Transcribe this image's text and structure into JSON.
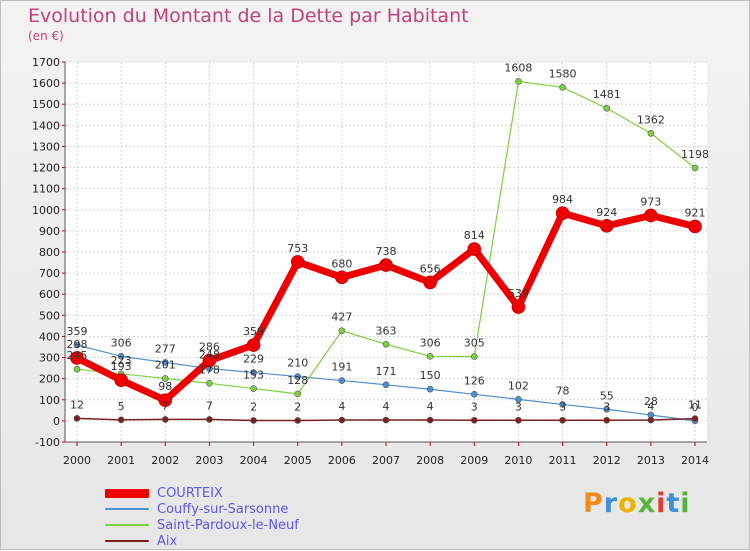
{
  "title": "Evolution du Montant de la Dette par Habitant",
  "subtitle": "(en €)",
  "logo": "Proxiti",
  "chart_data": {
    "type": "line",
    "x": [
      "2000",
      "2001",
      "2002",
      "2003",
      "2004",
      "2005",
      "2006",
      "2007",
      "2008",
      "2009",
      "2010",
      "2011",
      "2012",
      "2013",
      "2014"
    ],
    "ylim": [
      -100,
      1700
    ],
    "yticks": [
      -100,
      0,
      100,
      200,
      300,
      400,
      500,
      600,
      700,
      800,
      900,
      1000,
      1100,
      1200,
      1300,
      1400,
      1500,
      1600,
      1700
    ],
    "grid": true,
    "legend_position": "bottom-left",
    "series": [
      {
        "name": "COURTEIX",
        "color": "#ee0000",
        "values": [
          298,
          193,
          98,
          286,
          359,
          753,
          680,
          738,
          656,
          814,
          539,
          984,
          924,
          973,
          921
        ]
      },
      {
        "name": "Couffy-sur-Sarsonne",
        "color": "#4f8fce",
        "values": [
          359,
          306,
          277,
          248,
          229,
          210,
          191,
          171,
          150,
          126,
          102,
          78,
          55,
          28,
          0
        ]
      },
      {
        "name": "Saint-Pardoux-le-Neuf",
        "color": "#7fd040",
        "values": [
          245,
          223,
          201,
          178,
          153,
          128,
          427,
          363,
          306,
          305,
          1608,
          1580,
          1481,
          1362,
          1198
        ]
      },
      {
        "name": "Aix",
        "color": "#7a2020",
        "values": [
          12,
          5,
          7,
          7,
          2,
          2,
          4,
          4,
          4,
          3,
          3,
          3,
          3,
          4,
          11
        ]
      }
    ]
  }
}
